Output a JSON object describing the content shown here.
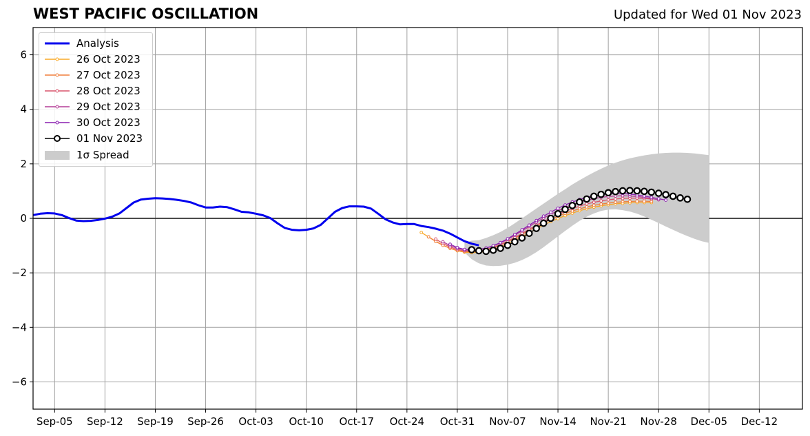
{
  "header": {
    "title": "WEST PACIFIC OSCILLATION",
    "subtitle": "Updated for Wed 01 Nov 2023"
  },
  "chart_data": {
    "type": "line",
    "title": "WEST PACIFIC OSCILLATION",
    "subtitle": "Updated for Wed 01 Nov 2023",
    "xlabel": "",
    "ylabel": "",
    "xlim": [
      "2023-09-02",
      "2023-12-18"
    ],
    "ylim": [
      -7,
      7
    ],
    "yticks": [
      -6,
      -4,
      -2,
      0,
      2,
      4,
      6
    ],
    "ytick_labels": [
      "−6",
      "−4",
      "−2",
      "0",
      "2",
      "4",
      "6"
    ],
    "xticks": [
      "2023-09-05",
      "2023-09-12",
      "2023-09-19",
      "2023-09-26",
      "2023-10-03",
      "2023-10-10",
      "2023-10-17",
      "2023-10-24",
      "2023-10-31",
      "2023-11-07",
      "2023-11-14",
      "2023-11-21",
      "2023-11-28",
      "2023-12-05",
      "2023-12-12"
    ],
    "xtick_labels": [
      "Sep-05",
      "Sep-12",
      "Sep-19",
      "Sep-26",
      "Oct-03",
      "Oct-10",
      "Oct-17",
      "Oct-24",
      "Oct-31",
      "Nov-07",
      "Nov-14",
      "Nov-21",
      "Nov-28",
      "Dec-05",
      "Dec-12"
    ],
    "grid": true,
    "zero_line": true,
    "legend_position": "top-left",
    "series": [
      {
        "name": "Analysis",
        "color": "#0000ee",
        "style": "analysis",
        "x_start": "2023-09-02",
        "values": [
          0.12,
          0.17,
          0.19,
          0.18,
          0.12,
          0.01,
          -0.08,
          -0.1,
          -0.09,
          -0.06,
          -0.01,
          0.06,
          0.18,
          0.38,
          0.58,
          0.69,
          0.72,
          0.74,
          0.73,
          0.71,
          0.68,
          0.64,
          0.58,
          0.48,
          0.4,
          0.4,
          0.43,
          0.41,
          0.33,
          0.24,
          0.22,
          0.17,
          0.11,
          0.01,
          -0.18,
          -0.35,
          -0.42,
          -0.44,
          -0.42,
          -0.37,
          -0.24,
          0.0,
          0.24,
          0.38,
          0.44,
          0.44,
          0.43,
          0.36,
          0.17,
          -0.03,
          -0.15,
          -0.22,
          -0.21,
          -0.21,
          -0.28,
          -0.32,
          -0.38,
          -0.45,
          -0.56,
          -0.7,
          -0.84,
          -0.93,
          -0.99
        ]
      },
      {
        "name": "26 Oct 2023",
        "color": "#f9a825",
        "style": "forecast",
        "x_start": "2023-10-26",
        "values": [
          -0.52,
          -0.68,
          -0.84,
          -0.98,
          -1.1,
          -1.19,
          -1.24,
          -1.26,
          -1.25,
          -1.21,
          -1.14,
          -1.05,
          -0.94,
          -0.81,
          -0.67,
          -0.53,
          -0.39,
          -0.25,
          -0.12,
          -0.01,
          0.1,
          0.19,
          0.28,
          0.35,
          0.41,
          0.46,
          0.5,
          0.53,
          0.55,
          0.57,
          0.58,
          0.58,
          0.58
        ]
      },
      {
        "name": "27 Oct 2023",
        "color": "#f07f3c",
        "style": "forecast",
        "x_start": "2023-10-27",
        "values": [
          -0.68,
          -0.85,
          -0.99,
          -1.1,
          -1.18,
          -1.22,
          -1.23,
          -1.21,
          -1.16,
          -1.08,
          -0.98,
          -0.86,
          -0.73,
          -0.59,
          -0.44,
          -0.3,
          -0.16,
          -0.04,
          0.08,
          0.18,
          0.27,
          0.35,
          0.42,
          0.48,
          0.52,
          0.56,
          0.59,
          0.61,
          0.62,
          0.63,
          0.63,
          0.62
        ]
      },
      {
        "name": "28 Oct 2023",
        "color": "#d9546c",
        "style": "forecast",
        "x_start": "2023-10-28",
        "values": [
          -0.76,
          -0.92,
          -1.05,
          -1.14,
          -1.19,
          -1.21,
          -1.19,
          -1.14,
          -1.06,
          -0.96,
          -0.84,
          -0.7,
          -0.55,
          -0.4,
          -0.25,
          -0.11,
          0.02,
          0.15,
          0.26,
          0.36,
          0.45,
          0.53,
          0.59,
          0.64,
          0.68,
          0.71,
          0.73,
          0.74,
          0.74,
          0.73,
          0.71
        ]
      },
      {
        "name": "29 Oct 2023",
        "color": "#b43c96",
        "style": "forecast",
        "x_start": "2023-10-29",
        "values": [
          -0.86,
          -1.0,
          -1.1,
          -1.16,
          -1.17,
          -1.15,
          -1.09,
          -1.01,
          -0.9,
          -0.77,
          -0.62,
          -0.46,
          -0.3,
          -0.14,
          0.01,
          0.15,
          0.28,
          0.4,
          0.5,
          0.59,
          0.66,
          0.72,
          0.77,
          0.8,
          0.82,
          0.83,
          0.82,
          0.8,
          0.77,
          0.73,
          0.68
        ]
      },
      {
        "name": "30 Oct 2023",
        "color": "#8a1fb0",
        "style": "forecast",
        "x_start": "2023-10-30",
        "values": [
          -0.95,
          -1.07,
          -1.14,
          -1.16,
          -1.14,
          -1.09,
          -1.0,
          -0.89,
          -0.75,
          -0.59,
          -0.42,
          -0.25,
          -0.08,
          0.08,
          0.23,
          0.37,
          0.49,
          0.6,
          0.69,
          0.77,
          0.83,
          0.87,
          0.9,
          0.91,
          0.91,
          0.89,
          0.86,
          0.82,
          0.77,
          0.72,
          0.67
        ]
      },
      {
        "name": "01 Nov 2023",
        "color": "#000000",
        "style": "markers",
        "x_start": "2023-11-02",
        "values": [
          -1.15,
          -1.19,
          -1.21,
          -1.17,
          -1.1,
          -0.99,
          -0.86,
          -0.72,
          -0.55,
          -0.37,
          -0.18,
          0.0,
          0.17,
          0.33,
          0.47,
          0.6,
          0.71,
          0.81,
          0.88,
          0.94,
          0.98,
          1.01,
          1.02,
          1.01,
          0.99,
          0.96,
          0.92,
          0.87,
          0.81,
          0.75,
          0.7
        ]
      }
    ],
    "spread": {
      "name": "1σ Spread",
      "color": "#cccccc",
      "x_start": "2023-11-01",
      "upper": [
        -0.9,
        -0.82,
        -0.8,
        -0.72,
        -0.62,
        -0.5,
        -0.35,
        -0.18,
        0.0,
        0.18,
        0.36,
        0.54,
        0.72,
        0.9,
        1.07,
        1.24,
        1.4,
        1.55,
        1.69,
        1.82,
        1.94,
        2.04,
        2.13,
        2.2,
        2.26,
        2.31,
        2.35,
        2.38,
        2.4,
        2.41,
        2.41,
        2.4,
        2.38,
        2.35,
        2.32
      ],
      "lower": [
        -1.25,
        -1.5,
        -1.65,
        -1.73,
        -1.75,
        -1.74,
        -1.7,
        -1.63,
        -1.53,
        -1.4,
        -1.24,
        -1.06,
        -0.86,
        -0.66,
        -0.46,
        -0.27,
        -0.09,
        0.06,
        0.18,
        0.27,
        0.32,
        0.33,
        0.3,
        0.25,
        0.17,
        0.07,
        -0.05,
        -0.17,
        -0.3,
        -0.42,
        -0.54,
        -0.65,
        -0.75,
        -0.84,
        -0.9
      ]
    }
  }
}
